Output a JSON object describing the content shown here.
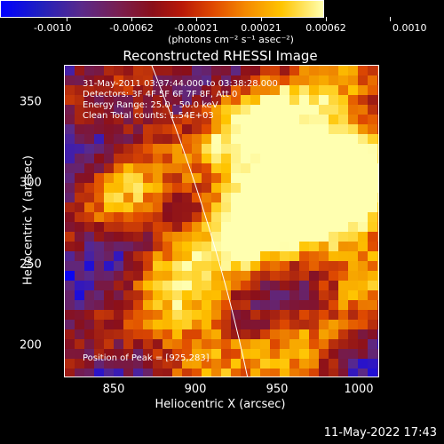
{
  "colorbar": {
    "ticks": [
      "-0.0010",
      "-0.00062",
      "-0.00021",
      "0.00021",
      "0.00062",
      "0.0010"
    ],
    "label": "(photons cm⁻² s⁻¹ asec⁻²)"
  },
  "title": "Reconstructed RHESSI Image",
  "info": {
    "time": "31-May-2011 03:37:44.000 to 03:38:28.000",
    "detectors": "Detectors: 3F 4F 5F 6F 7F 8F, Att 0",
    "energy": "Energy Range: 25.0 - 50.0 keV",
    "clean": "Clean     Total counts: 1.54E+03",
    "peak": "Position of Peak = [925,283]"
  },
  "axes": {
    "xlabel": "Heliocentric X (arcsec)",
    "ylabel": "Heliocentric Y (arcsec)",
    "xticks": [
      "850",
      "900",
      "950",
      "1000"
    ],
    "yticks": [
      "350",
      "300",
      "250",
      "200"
    ],
    "xlim": [
      818,
      1010
    ],
    "ylim": [
      180,
      372
    ]
  },
  "timestamp": "11-May-2022 17:43",
  "colors": {
    "limb": "#ffffff",
    "colormap": [
      "#0000ff",
      "#5a2a8a",
      "#8a0f1a",
      "#e04a00",
      "#ffc400",
      "#ffffb0"
    ]
  }
}
